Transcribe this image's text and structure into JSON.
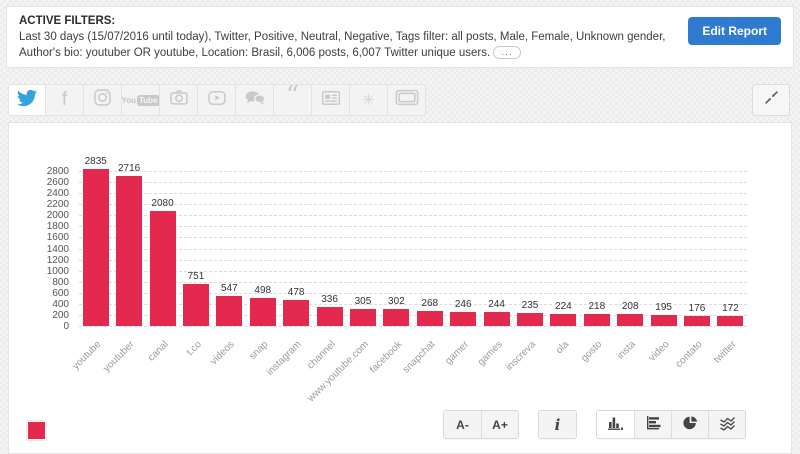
{
  "filters": {
    "title": "ACTIVE FILTERS:",
    "line1": "Last 30 days (15/07/2016 until today), Twitter, Positive, Neutral, Negative, Tags filter: all posts, Male, Female, Unknown gender,",
    "line2": "Author's bio: youtuber OR youtube, Location: Brasil, 6,006 posts, 6,007 Twitter unique users.",
    "more_label": "...",
    "edit_button": "Edit Report"
  },
  "channels": {
    "items": [
      {
        "name": "twitter",
        "active": true
      },
      {
        "name": "facebook",
        "active": false
      },
      {
        "name": "instagram",
        "active": false
      },
      {
        "name": "youtube",
        "active": false
      },
      {
        "name": "photos",
        "active": false
      },
      {
        "name": "videos",
        "active": false
      },
      {
        "name": "comments",
        "active": false
      },
      {
        "name": "quotes",
        "active": false
      },
      {
        "name": "news",
        "active": false
      },
      {
        "name": "forums",
        "active": false
      },
      {
        "name": "tickets",
        "active": false
      }
    ]
  },
  "chart_data": {
    "type": "bar",
    "title": "",
    "xlabel": "",
    "ylabel": "",
    "categories": [
      "youtube",
      "youtuber",
      "canal",
      "t.co",
      "videos",
      "snap",
      "instagram",
      "channel",
      "www.youtube.com",
      "facebook",
      "snapchat",
      "gamer",
      "games",
      "inscreva",
      "ola",
      "gosto",
      "insta",
      "video",
      "contato",
      "twitter"
    ],
    "values": [
      2835,
      2716,
      2080,
      751,
      547,
      498,
      478,
      336,
      305,
      302,
      268,
      246,
      244,
      235,
      224,
      218,
      208,
      195,
      176,
      172
    ],
    "ylim": [
      0,
      2800
    ],
    "ytick_step": 200,
    "grid": true,
    "legend_position": "bottom-left"
  },
  "controls": {
    "font_smaller": "A-",
    "font_larger": "A+",
    "info": "i",
    "chart_types": [
      {
        "name": "column-chart",
        "active": true
      },
      {
        "name": "bar-chart",
        "active": false
      },
      {
        "name": "pie-chart",
        "active": false
      },
      {
        "name": "line-chart",
        "active": false
      }
    ]
  },
  "colors": {
    "bar_red": "#e3294d",
    "accent_blue": "#2e7bcf",
    "twitter_blue": "#33a3dd",
    "inactive_icon_gray": "#c9c9c9"
  }
}
